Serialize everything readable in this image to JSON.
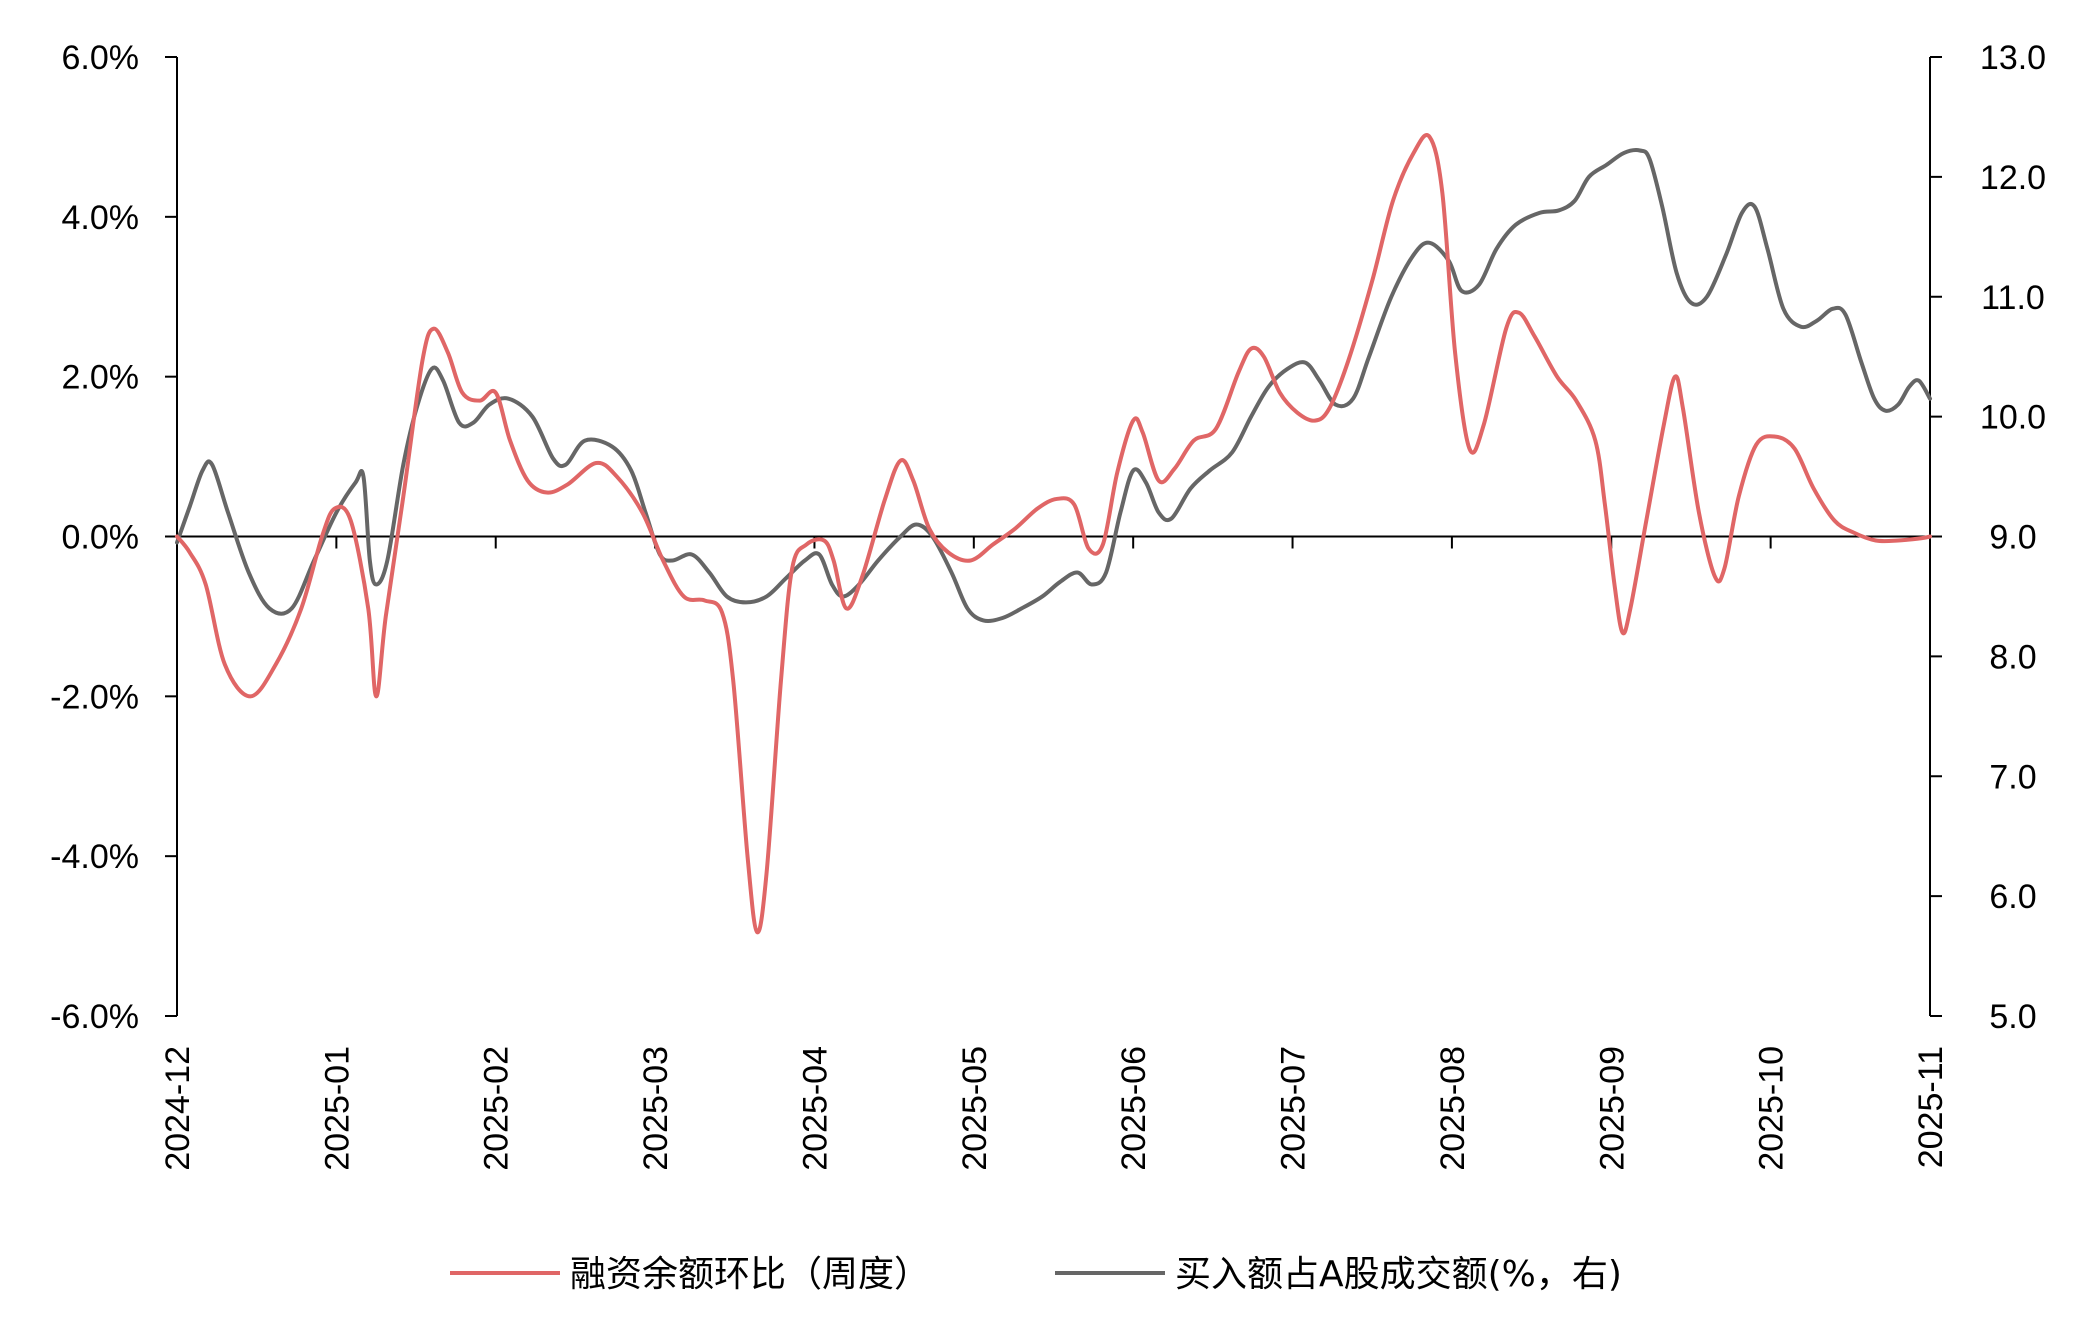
{
  "chart_data": {
    "type": "line",
    "x": [
      "2024-12",
      "2025-01",
      "2025-02",
      "2025-03",
      "2025-04",
      "2025-05",
      "2025-06",
      "2025-07",
      "2025-08",
      "2025-09",
      "2025-10",
      "2025-11"
    ],
    "left_axis": {
      "ylim": [
        -6.0,
        6.0
      ],
      "ticks": [
        "-6.0%",
        "-4.0%",
        "-2.0%",
        "0.0%",
        "2.0%",
        "4.0%",
        "6.0%"
      ]
    },
    "right_axis": {
      "ylim": [
        5.0,
        13.0
      ],
      "ticks": [
        "5.0",
        "6.0",
        "7.0",
        "8.0",
        "9.0",
        "10.0",
        "11.0",
        "12.0",
        "13.0"
      ]
    },
    "legend_position": "bottom",
    "series": [
      {
        "name": "融资余额环比（周度）",
        "axis": "left",
        "color": "#e06666",
        "points": [
          [
            0.0,
            0.0
          ],
          [
            0.08,
            -0.2
          ],
          [
            0.18,
            -0.6
          ],
          [
            0.3,
            -1.6
          ],
          [
            0.46,
            -2.0
          ],
          [
            0.62,
            -1.6
          ],
          [
            0.78,
            -0.9
          ],
          [
            0.91,
            0.0
          ],
          [
            0.99,
            0.35
          ],
          [
            1.09,
            0.2
          ],
          [
            1.2,
            -0.9
          ],
          [
            1.25,
            -2.0
          ],
          [
            1.31,
            -1.0
          ],
          [
            1.42,
            0.5
          ],
          [
            1.54,
            2.2
          ],
          [
            1.61,
            2.6
          ],
          [
            1.7,
            2.3
          ],
          [
            1.79,
            1.8
          ],
          [
            1.9,
            1.7
          ],
          [
            2.0,
            1.8
          ],
          [
            2.09,
            1.2
          ],
          [
            2.2,
            0.7
          ],
          [
            2.32,
            0.55
          ],
          [
            2.45,
            0.65
          ],
          [
            2.63,
            0.92
          ],
          [
            2.76,
            0.75
          ],
          [
            2.92,
            0.3
          ],
          [
            3.05,
            -0.3
          ],
          [
            3.18,
            -0.75
          ],
          [
            3.31,
            -0.8
          ],
          [
            3.42,
            -0.95
          ],
          [
            3.49,
            -1.8
          ],
          [
            3.58,
            -4.0
          ],
          [
            3.64,
            -4.95
          ],
          [
            3.7,
            -4.2
          ],
          [
            3.79,
            -1.8
          ],
          [
            3.86,
            -0.4
          ],
          [
            3.95,
            -0.1
          ],
          [
            4.06,
            -0.05
          ],
          [
            4.12,
            -0.3
          ],
          [
            4.2,
            -0.9
          ],
          [
            4.3,
            -0.5
          ],
          [
            4.44,
            0.45
          ],
          [
            4.54,
            0.95
          ],
          [
            4.62,
            0.7
          ],
          [
            4.72,
            0.1
          ],
          [
            4.84,
            -0.2
          ],
          [
            4.98,
            -0.3
          ],
          [
            5.12,
            -0.1
          ],
          [
            5.26,
            0.1
          ],
          [
            5.4,
            0.35
          ],
          [
            5.52,
            0.47
          ],
          [
            5.63,
            0.4
          ],
          [
            5.72,
            -0.15
          ],
          [
            5.81,
            -0.1
          ],
          [
            5.9,
            0.8
          ],
          [
            6.0,
            1.45
          ],
          [
            6.06,
            1.3
          ],
          [
            6.16,
            0.7
          ],
          [
            6.26,
            0.85
          ],
          [
            6.38,
            1.2
          ],
          [
            6.52,
            1.35
          ],
          [
            6.66,
            2.05
          ],
          [
            6.74,
            2.35
          ],
          [
            6.82,
            2.25
          ],
          [
            6.92,
            1.8
          ],
          [
            7.03,
            1.55
          ],
          [
            7.14,
            1.45
          ],
          [
            7.23,
            1.6
          ],
          [
            7.35,
            2.2
          ],
          [
            7.5,
            3.2
          ],
          [
            7.63,
            4.2
          ],
          [
            7.76,
            4.8
          ],
          [
            7.86,
            5.0
          ],
          [
            7.94,
            4.3
          ],
          [
            8.02,
            2.3
          ],
          [
            8.11,
            1.1
          ],
          [
            8.2,
            1.4
          ],
          [
            8.34,
            2.6
          ],
          [
            8.42,
            2.8
          ],
          [
            8.52,
            2.5
          ],
          [
            8.66,
            2.0
          ],
          [
            8.78,
            1.7
          ],
          [
            8.9,
            1.2
          ],
          [
            8.96,
            0.4
          ],
          [
            9.02,
            -0.6
          ],
          [
            9.07,
            -1.2
          ],
          [
            9.12,
            -0.9
          ],
          [
            9.22,
            0.2
          ],
          [
            9.33,
            1.4
          ],
          [
            9.4,
            2.0
          ],
          [
            9.45,
            1.6
          ],
          [
            9.55,
            0.3
          ],
          [
            9.65,
            -0.5
          ],
          [
            9.71,
            -0.4
          ],
          [
            9.8,
            0.5
          ],
          [
            9.91,
            1.15
          ],
          [
            10.03,
            1.25
          ],
          [
            10.15,
            1.1
          ],
          [
            10.27,
            0.6
          ],
          [
            10.4,
            0.2
          ],
          [
            10.52,
            0.05
          ],
          [
            10.66,
            -0.05
          ],
          [
            10.8,
            -0.05
          ],
          [
            10.95,
            -0.02
          ],
          [
            11.0,
            0.0
          ]
        ]
      },
      {
        "name": "买入额占A股成交额(%，右)",
        "axis": "right",
        "color": "#666666",
        "points": [
          [
            0.0,
            8.95
          ],
          [
            0.08,
            9.25
          ],
          [
            0.16,
            9.55
          ],
          [
            0.22,
            9.6
          ],
          [
            0.32,
            9.2
          ],
          [
            0.45,
            8.7
          ],
          [
            0.58,
            8.4
          ],
          [
            0.72,
            8.4
          ],
          [
            0.86,
            8.8
          ],
          [
            1.0,
            9.2
          ],
          [
            1.12,
            9.45
          ],
          [
            1.17,
            9.5
          ],
          [
            1.21,
            8.8
          ],
          [
            1.25,
            8.6
          ],
          [
            1.32,
            8.8
          ],
          [
            1.42,
            9.6
          ],
          [
            1.51,
            10.1
          ],
          [
            1.6,
            10.4
          ],
          [
            1.67,
            10.3
          ],
          [
            1.77,
            9.95
          ],
          [
            1.86,
            9.95
          ],
          [
            1.96,
            10.1
          ],
          [
            2.08,
            10.15
          ],
          [
            2.23,
            10.0
          ],
          [
            2.36,
            9.65
          ],
          [
            2.44,
            9.6
          ],
          [
            2.56,
            9.8
          ],
          [
            2.73,
            9.75
          ],
          [
            2.85,
            9.55
          ],
          [
            2.94,
            9.2
          ],
          [
            3.03,
            8.85
          ],
          [
            3.11,
            8.8
          ],
          [
            3.23,
            8.85
          ],
          [
            3.34,
            8.7
          ],
          [
            3.45,
            8.5
          ],
          [
            3.57,
            8.45
          ],
          [
            3.7,
            8.5
          ],
          [
            3.82,
            8.65
          ],
          [
            3.94,
            8.8
          ],
          [
            4.03,
            8.85
          ],
          [
            4.11,
            8.6
          ],
          [
            4.18,
            8.5
          ],
          [
            4.28,
            8.6
          ],
          [
            4.4,
            8.8
          ],
          [
            4.54,
            9.0
          ],
          [
            4.64,
            9.1
          ],
          [
            4.74,
            9.0
          ],
          [
            4.86,
            8.7
          ],
          [
            4.96,
            8.4
          ],
          [
            5.06,
            8.3
          ],
          [
            5.18,
            8.32
          ],
          [
            5.3,
            8.4
          ],
          [
            5.43,
            8.5
          ],
          [
            5.54,
            8.62
          ],
          [
            5.65,
            8.7
          ],
          [
            5.74,
            8.6
          ],
          [
            5.83,
            8.7
          ],
          [
            5.92,
            9.2
          ],
          [
            6.0,
            9.55
          ],
          [
            6.08,
            9.45
          ],
          [
            6.16,
            9.2
          ],
          [
            6.24,
            9.15
          ],
          [
            6.36,
            9.4
          ],
          [
            6.48,
            9.55
          ],
          [
            6.62,
            9.7
          ],
          [
            6.74,
            10.0
          ],
          [
            6.85,
            10.25
          ],
          [
            6.97,
            10.4
          ],
          [
            7.08,
            10.45
          ],
          [
            7.17,
            10.3
          ],
          [
            7.27,
            10.1
          ],
          [
            7.38,
            10.15
          ],
          [
            7.48,
            10.5
          ],
          [
            7.62,
            11.0
          ],
          [
            7.76,
            11.35
          ],
          [
            7.86,
            11.45
          ],
          [
            7.98,
            11.3
          ],
          [
            8.06,
            11.05
          ],
          [
            8.17,
            11.1
          ],
          [
            8.28,
            11.4
          ],
          [
            8.4,
            11.6
          ],
          [
            8.55,
            11.7
          ],
          [
            8.67,
            11.72
          ],
          [
            8.77,
            11.8
          ],
          [
            8.86,
            12.0
          ],
          [
            8.97,
            12.1
          ],
          [
            9.08,
            12.2
          ],
          [
            9.18,
            12.22
          ],
          [
            9.24,
            12.15
          ],
          [
            9.32,
            11.75
          ],
          [
            9.41,
            11.2
          ],
          [
            9.5,
            10.95
          ],
          [
            9.6,
            11.0
          ],
          [
            9.72,
            11.35
          ],
          [
            9.82,
            11.7
          ],
          [
            9.9,
            11.75
          ],
          [
            9.98,
            11.4
          ],
          [
            10.08,
            10.9
          ],
          [
            10.19,
            10.75
          ],
          [
            10.29,
            10.8
          ],
          [
            10.39,
            10.9
          ],
          [
            10.47,
            10.85
          ],
          [
            10.57,
            10.45
          ],
          [
            10.65,
            10.15
          ],
          [
            10.72,
            10.05
          ],
          [
            10.8,
            10.1
          ],
          [
            10.87,
            10.25
          ],
          [
            10.93,
            10.3
          ],
          [
            11.0,
            10.15
          ]
        ]
      }
    ]
  }
}
